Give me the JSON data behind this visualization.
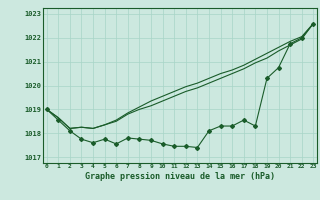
{
  "xlabel": "Graphe pression niveau de la mer (hPa)",
  "background_color": "#cce8df",
  "grid_color": "#a8d5c8",
  "line_color": "#1a5c2a",
  "xlim": [
    -0.3,
    23.3
  ],
  "ylim": [
    1016.75,
    1023.25
  ],
  "yticks": [
    1017,
    1018,
    1019,
    1020,
    1021,
    1022,
    1023
  ],
  "xticks": [
    0,
    1,
    2,
    3,
    4,
    5,
    6,
    7,
    8,
    9,
    10,
    11,
    12,
    13,
    14,
    15,
    16,
    17,
    18,
    19,
    20,
    21,
    22,
    23
  ],
  "series_raw": [
    1019.0,
    1018.55,
    1018.1,
    1017.75,
    1017.6,
    1017.75,
    1017.55,
    1017.8,
    1017.75,
    1017.7,
    1017.55,
    1017.45,
    1017.45,
    1017.4,
    1018.1,
    1018.3,
    1018.3,
    1018.55,
    1018.3,
    1020.3,
    1020.75,
    1021.75,
    1022.0,
    1022.6
  ],
  "series_smooth1": [
    1019.0,
    1018.65,
    1018.2,
    1018.25,
    1018.2,
    1018.35,
    1018.55,
    1018.85,
    1019.1,
    1019.35,
    1019.55,
    1019.75,
    1019.95,
    1020.1,
    1020.3,
    1020.5,
    1020.65,
    1020.85,
    1021.1,
    1021.35,
    1021.6,
    1021.85,
    1022.05,
    1022.6
  ],
  "series_smooth2": [
    1019.0,
    1018.65,
    1018.2,
    1018.25,
    1018.2,
    1018.35,
    1018.5,
    1018.8,
    1019.0,
    1019.15,
    1019.35,
    1019.55,
    1019.75,
    1019.9,
    1020.1,
    1020.3,
    1020.5,
    1020.7,
    1020.95,
    1021.15,
    1021.45,
    1021.7,
    1021.95,
    1022.6
  ]
}
